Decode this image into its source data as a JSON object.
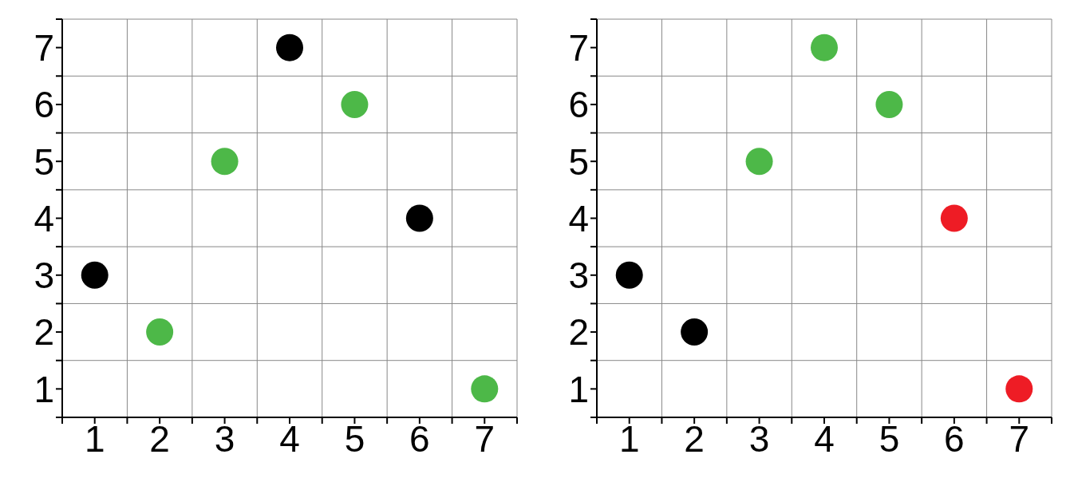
{
  "chart_data": [
    {
      "type": "scatter",
      "x": [
        1,
        2,
        3,
        4,
        5,
        6,
        7
      ],
      "values": [
        3,
        2,
        5,
        7,
        6,
        4,
        1
      ],
      "colors": [
        "#000000",
        "#4db848",
        "#4db848",
        "#000000",
        "#4db848",
        "#000000",
        "#4db848"
      ],
      "marker": "circle",
      "grid": true,
      "xlim": [
        0.5,
        7.5
      ],
      "ylim": [
        0.5,
        7.5
      ],
      "xticks": [
        {
          "value": 0.5,
          "label": null
        },
        1,
        {
          "value": 1.5,
          "label": null
        },
        2,
        {
          "value": 2.5,
          "label": null
        },
        3,
        {
          "value": 3.5,
          "label": null
        },
        4,
        {
          "value": 4.5,
          "label": null
        },
        5,
        {
          "value": 5.5,
          "label": null
        },
        6,
        {
          "value": 6.5,
          "label": null
        },
        7,
        {
          "value": 7.5,
          "label": null
        }
      ],
      "yticks": [
        {
          "value": 0.5,
          "label": null
        },
        1,
        {
          "value": 1.5,
          "label": null
        },
        2,
        {
          "value": 2.5,
          "label": null
        },
        3,
        {
          "value": 3.5,
          "label": null
        },
        4,
        {
          "value": 4.5,
          "label": null
        },
        5,
        {
          "value": 5.5,
          "label": null
        },
        6,
        {
          "value": 6.5,
          "label": null
        },
        7,
        {
          "value": 7.5,
          "label": null
        }
      ]
    },
    {
      "type": "scatter",
      "x": [
        1,
        2,
        3,
        4,
        5,
        6,
        7
      ],
      "values": [
        3,
        2,
        5,
        7,
        6,
        4,
        1
      ],
      "colors": [
        "#000000",
        "#000000",
        "#4db848",
        "#4db848",
        "#4db848",
        "#ee1c25",
        "#ee1c25"
      ],
      "marker": "circle",
      "grid": true,
      "xlim": [
        0.5,
        7.5
      ],
      "ylim": [
        0.5,
        7.5
      ],
      "xticks": [
        {
          "value": 0.5,
          "label": null
        },
        1,
        {
          "value": 1.5,
          "label": null
        },
        2,
        {
          "value": 2.5,
          "label": null
        },
        3,
        {
          "value": 3.5,
          "label": null
        },
        4,
        {
          "value": 4.5,
          "label": null
        },
        5,
        {
          "value": 5.5,
          "label": null
        },
        6,
        {
          "value": 6.5,
          "label": null
        },
        7,
        {
          "value": 7.5,
          "label": null
        }
      ],
      "yticks": [
        {
          "value": 0.5,
          "label": null
        },
        1,
        {
          "value": 1.5,
          "label": null
        },
        2,
        {
          "value": 2.5,
          "label": null
        },
        3,
        {
          "value": 3.5,
          "label": null
        },
        4,
        {
          "value": 4.5,
          "label": null
        },
        5,
        {
          "value": 5.5,
          "label": null
        },
        6,
        {
          "value": 6.5,
          "label": null
        },
        7,
        {
          "value": 7.5,
          "label": null
        }
      ]
    }
  ]
}
